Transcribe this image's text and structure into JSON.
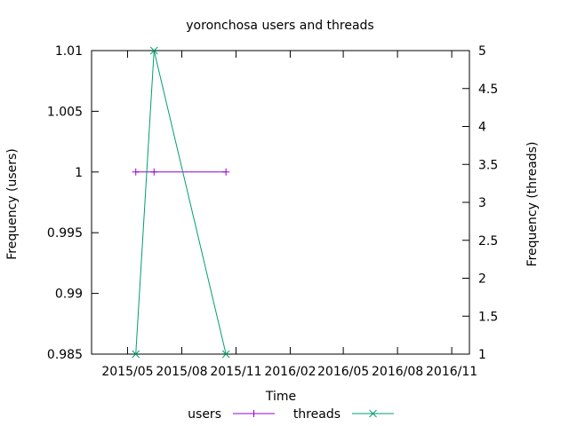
{
  "chart_data": {
    "type": "line",
    "title": "yoronchosa users and threads",
    "xlabel": "Time",
    "ylabel": "Frequency (users)",
    "y2label": "Frequency (threads)",
    "x_axis": {
      "type": "date",
      "range": [
        "2015-03-01",
        "2016-12-01"
      ],
      "ticks": [
        {
          "label": "2015/05",
          "date": "2015-05-01"
        },
        {
          "label": "2015/08",
          "date": "2015-08-01"
        },
        {
          "label": "2015/11",
          "date": "2015-11-01"
        },
        {
          "label": "2016/02",
          "date": "2016-02-01"
        },
        {
          "label": "2016/05",
          "date": "2016-05-01"
        },
        {
          "label": "2016/08",
          "date": "2016-08-01"
        },
        {
          "label": "2016/11",
          "date": "2016-11-01"
        }
      ]
    },
    "y_axis": {
      "range": [
        0.985,
        1.01
      ],
      "ticks": [
        {
          "label": "1.01",
          "value": 1.01
        },
        {
          "label": "1.005",
          "value": 1.005
        },
        {
          "label": "1",
          "value": 1.0
        },
        {
          "label": "0.995",
          "value": 0.995
        },
        {
          "label": "0.99",
          "value": 0.99
        },
        {
          "label": "0.985",
          "value": 0.985
        }
      ]
    },
    "y2_axis": {
      "range": [
        1,
        5
      ],
      "ticks": [
        {
          "label": "5",
          "value": 5
        },
        {
          "label": "4.5",
          "value": 4.5
        },
        {
          "label": "4",
          "value": 4
        },
        {
          "label": "3.5",
          "value": 3.5
        },
        {
          "label": "3",
          "value": 3
        },
        {
          "label": "2.5",
          "value": 2.5
        },
        {
          "label": "2",
          "value": 2
        },
        {
          "label": "1.5",
          "value": 1.5
        },
        {
          "label": "1",
          "value": 1
        }
      ]
    },
    "grid": false,
    "legend_position": "bottom-center",
    "series": [
      {
        "name": "users",
        "axis": "y",
        "color": "#9400d3",
        "marker": "plus",
        "points": [
          {
            "x": "2015-05-15",
            "y": 1
          },
          {
            "x": "2015-06-15",
            "y": 1
          },
          {
            "x": "2015-10-15",
            "y": 1
          }
        ]
      },
      {
        "name": "threads",
        "axis": "y2",
        "color": "#009e73",
        "marker": "cross",
        "points": [
          {
            "x": "2015-05-15",
            "y": 1
          },
          {
            "x": "2015-06-15",
            "y": 5
          },
          {
            "x": "2015-10-15",
            "y": 1
          }
        ]
      }
    ]
  }
}
